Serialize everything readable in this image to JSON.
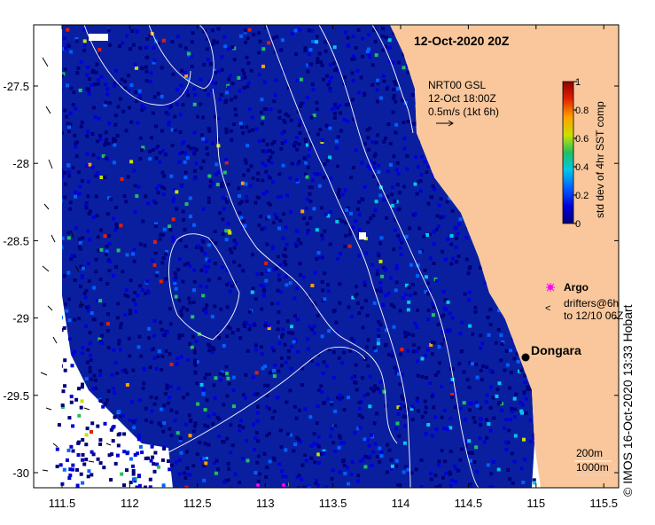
{
  "map": {
    "title": "12-Oct-2020 20Z",
    "product": {
      "line1": "NRT00 GSL",
      "line2": "12-Oct 18:00Z",
      "line3": "0.5m/s (1kt 6h)"
    },
    "colorbar": {
      "label": "std dev of 4hr SST comp",
      "ticks": [
        "1",
        "0.8",
        "0.6",
        "0.4",
        "0.2",
        "0"
      ],
      "colors": [
        "#00007a",
        "#0000d8",
        "#0060ff",
        "#00c8e8",
        "#20c060",
        "#c8e000",
        "#ffa000",
        "#e02000",
        "#900000"
      ]
    },
    "legend": {
      "argo_label": "Argo",
      "drifter_label": "drifters@6h",
      "drifter_sub": "to 12/10 06Z"
    },
    "place": {
      "name": "Dongara"
    },
    "scale": {
      "label1": "200m",
      "label2": "1000m"
    },
    "credit": "© IMOS 16-Oct-2020 13:33 Hobart",
    "x_ticks": [
      "111.5",
      "112",
      "112.5",
      "113",
      "113.5",
      "114",
      "114.5",
      "115",
      "115.5"
    ],
    "y_ticks": [
      "-27.5",
      "-28",
      "-28.5",
      "-29",
      "-29.5",
      "-30"
    ],
    "colors": {
      "land": "#f9c79b",
      "ocean_base": "#0a1fa0",
      "contour": "#ffffff",
      "argo": "#ff00ff"
    }
  }
}
